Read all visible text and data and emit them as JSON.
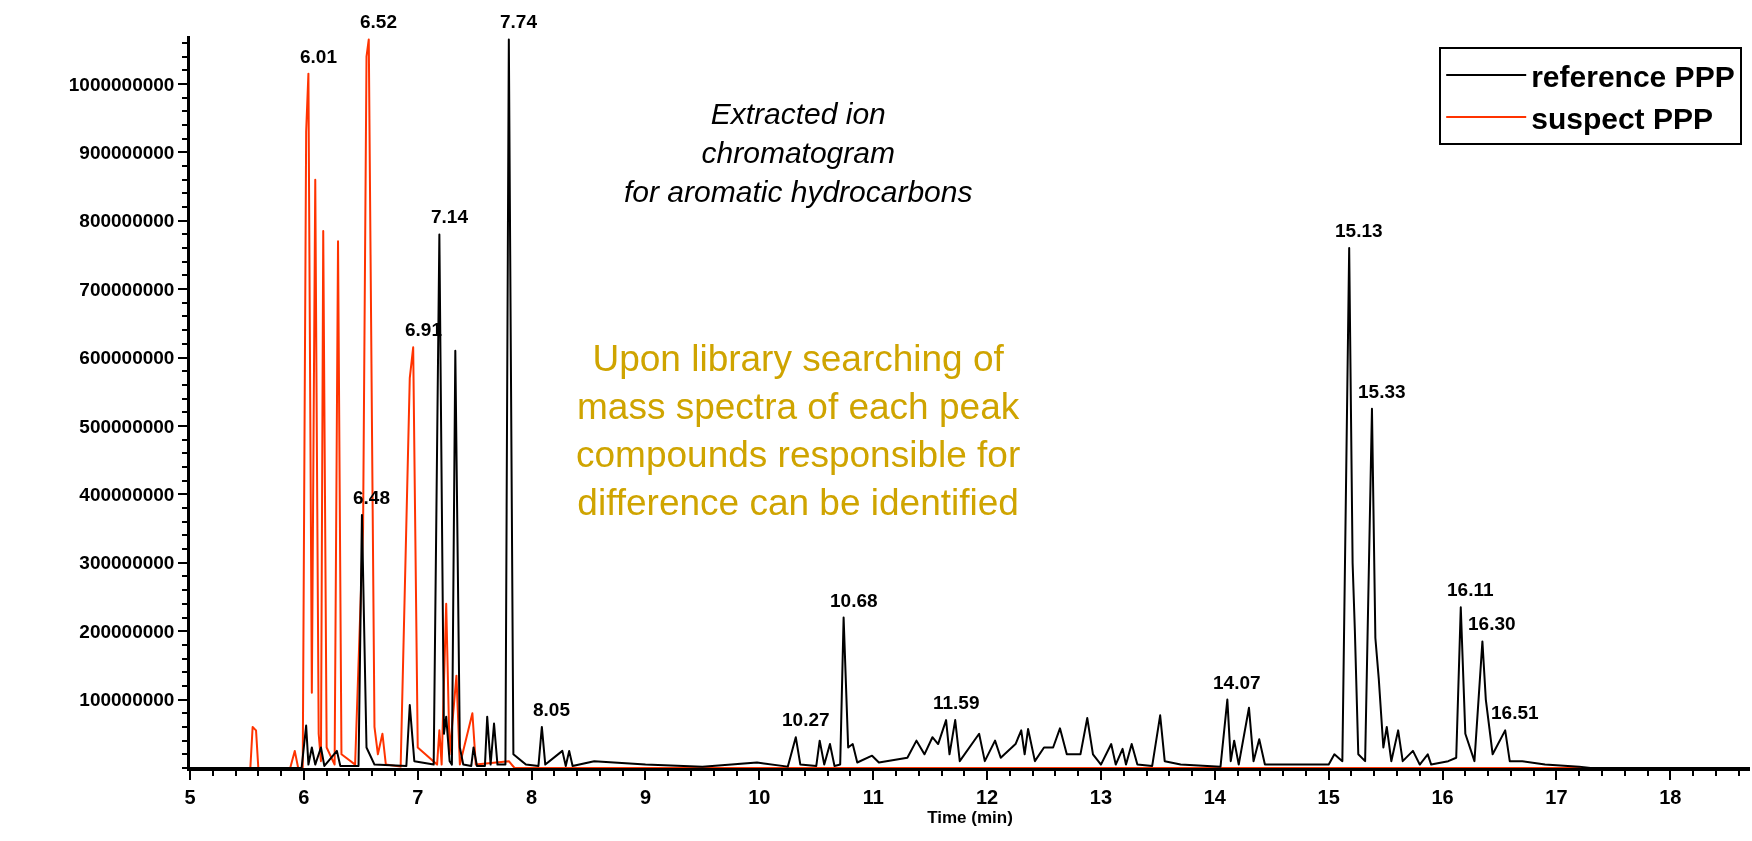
{
  "chart_data": {
    "type": "line",
    "xlabel": "Time (min)",
    "xlim": [
      5,
      18.7
    ],
    "xticks": [
      5,
      6,
      7,
      8,
      9,
      10,
      11,
      12,
      13,
      14,
      15,
      16,
      17,
      18
    ],
    "ylim": [
      0,
      1070000000
    ],
    "yticks": [
      100000000,
      200000000,
      300000000,
      400000000,
      500000000,
      600000000,
      700000000,
      800000000,
      900000000,
      1000000000
    ],
    "legend": "top right",
    "marker": "none",
    "line_style": "solid",
    "series": [
      {
        "name": "reference PPP",
        "color": "#000000",
        "x": [
          5.0,
          5.98,
          6.02,
          6.04,
          6.07,
          6.1,
          6.15,
          6.18,
          6.29,
          6.32,
          6.48,
          6.51,
          6.55,
          6.62,
          6.9,
          6.93,
          6.97,
          7.14,
          7.19,
          7.23,
          7.25,
          7.28,
          7.3,
          7.33,
          7.37,
          7.4,
          7.47,
          7.49,
          7.52,
          7.59,
          7.61,
          7.64,
          7.67,
          7.7,
          7.77,
          7.8,
          7.84,
          7.95,
          8.06,
          8.09,
          8.12,
          8.27,
          8.3,
          8.33,
          8.36,
          8.55,
          9.0,
          9.5,
          9.98,
          10.25,
          10.32,
          10.36,
          10.5,
          10.53,
          10.57,
          10.62,
          10.66,
          10.71,
          10.74,
          10.78,
          10.82,
          10.86,
          10.99,
          11.05,
          11.3,
          11.38,
          11.45,
          11.52,
          11.57,
          11.64,
          11.67,
          11.72,
          11.76,
          11.93,
          11.98,
          12.07,
          12.12,
          12.25,
          12.3,
          12.33,
          12.36,
          12.42,
          12.5,
          12.58,
          12.64,
          12.7,
          12.82,
          12.88,
          12.93,
          13.0,
          13.09,
          13.13,
          13.19,
          13.22,
          13.27,
          13.32,
          13.45,
          13.52,
          13.56,
          13.7,
          14.05,
          14.11,
          14.14,
          14.17,
          14.21,
          14.3,
          14.34,
          14.39,
          14.44,
          14.6,
          15.0,
          15.05,
          15.12,
          15.18,
          15.21,
          15.23,
          15.26,
          15.32,
          15.38,
          15.41,
          15.44,
          15.48,
          15.51,
          15.55,
          15.61,
          15.65,
          15.74,
          15.8,
          15.87,
          15.9,
          16.05,
          16.12,
          16.16,
          16.2,
          16.28,
          16.35,
          16.38,
          16.44,
          16.55,
          16.59,
          16.7,
          16.9,
          17.2,
          17.3,
          18.7
        ],
        "values": [
          0,
          0,
          62000000,
          5000000,
          30000000,
          5000000,
          30000000,
          3000000,
          25000000,
          3000000,
          3000000,
          370000000,
          30000000,
          5000000,
          3000000,
          92000000,
          10000000,
          5000000,
          780000000,
          50000000,
          75000000,
          10000000,
          5000000,
          610000000,
          30000000,
          5000000,
          3000000,
          30000000,
          3000000,
          3000000,
          75000000,
          5000000,
          65000000,
          5000000,
          5000000,
          1065000000,
          20000000,
          5000000,
          3000000,
          60000000,
          5000000,
          25000000,
          3000000,
          25000000,
          3000000,
          10000000,
          5000000,
          2000000,
          8000000,
          2000000,
          45000000,
          5000000,
          3000000,
          40000000,
          5000000,
          35000000,
          3000000,
          5000000,
          220000000,
          30000000,
          35000000,
          8000000,
          18000000,
          8000000,
          15000000,
          40000000,
          20000000,
          45000000,
          35000000,
          70000000,
          20000000,
          70000000,
          10000000,
          50000000,
          10000000,
          40000000,
          15000000,
          35000000,
          55000000,
          20000000,
          57000000,
          10000000,
          30000000,
          30000000,
          58000000,
          20000000,
          20000000,
          73000000,
          20000000,
          5000000,
          35000000,
          5000000,
          28000000,
          5000000,
          35000000,
          5000000,
          3000000,
          77000000,
          10000000,
          5000000,
          2000000,
          100000000,
          10000000,
          40000000,
          5000000,
          88000000,
          10000000,
          42000000,
          5000000,
          5000000,
          5000000,
          20000000,
          10000000,
          760000000,
          300000000,
          200000000,
          20000000,
          10000000,
          525000000,
          190000000,
          130000000,
          30000000,
          60000000,
          10000000,
          55000000,
          10000000,
          25000000,
          5000000,
          20000000,
          5000000,
          10000000,
          15000000,
          235000000,
          50000000,
          10000000,
          185000000,
          100000000,
          20000000,
          55000000,
          10000000,
          10000000,
          5000000,
          2000000,
          0,
          0
        ]
      },
      {
        "name": "suspect PPP",
        "color": "#ff3300",
        "x": [
          5.0,
          5.53,
          5.55,
          5.58,
          5.6,
          5.88,
          5.92,
          5.95,
          5.99,
          6.02,
          6.04,
          6.07,
          6.1,
          6.13,
          6.15,
          6.17,
          6.2,
          6.27,
          6.3,
          6.33,
          6.45,
          6.52,
          6.55,
          6.57,
          6.62,
          6.65,
          6.69,
          6.72,
          6.85,
          6.93,
          6.96,
          7.0,
          7.17,
          7.19,
          7.21,
          7.25,
          7.28,
          7.34,
          7.37,
          7.48,
          7.51,
          7.8,
          7.85,
          18.7
        ],
        "values": [
          0,
          0,
          60000000,
          55000000,
          0,
          0,
          25000000,
          0,
          0,
          930000000,
          1015000000,
          110000000,
          860000000,
          50000000,
          10000000,
          785000000,
          30000000,
          5000000,
          770000000,
          20000000,
          5000000,
          350000000,
          1040000000,
          1065000000,
          60000000,
          20000000,
          50000000,
          5000000,
          2000000,
          570000000,
          615000000,
          30000000,
          5000000,
          55000000,
          5000000,
          240000000,
          20000000,
          135000000,
          5000000,
          80000000,
          5000000,
          10000000,
          0,
          0
        ]
      }
    ],
    "annotations": [
      "Extracted ion\nchromatogram\nfor aromatic hydrocarbons",
      "Upon library searching of\nmass spectra of each peak\ncompounds responsible for\ndifference can be identified",
      {
        "text": "6.01",
        "x": 6.04,
        "y": 1015000000
      },
      {
        "text": "6.52",
        "x": 6.57,
        "y": 1065000000
      },
      {
        "text": "6.48",
        "x": 6.51,
        "y": 370000000
      },
      {
        "text": "6.91",
        "x": 6.96,
        "y": 615000000
      },
      {
        "text": "7.14",
        "x": 7.19,
        "y": 780000000
      },
      {
        "text": "7.74",
        "x": 7.8,
        "y": 1065000000
      },
      {
        "text": "8.05",
        "x": 8.09,
        "y": 60000000
      },
      {
        "text": "10.27",
        "x": 10.32,
        "y": 45000000
      },
      {
        "text": "10.68",
        "x": 10.74,
        "y": 220000000
      },
      {
        "text": "11.59",
        "x": 11.64,
        "y": 70000000
      },
      {
        "text": "14.07",
        "x": 14.11,
        "y": 100000000
      },
      {
        "text": "15.13",
        "x": 15.18,
        "y": 760000000
      },
      {
        "text": "15.33",
        "x": 15.38,
        "y": 525000000
      },
      {
        "text": "16.11",
        "x": 16.16,
        "y": 235000000
      },
      {
        "text": "16.30",
        "x": 16.35,
        "y": 185000000
      },
      {
        "text": "16.51",
        "x": 16.55,
        "y": 55000000
      }
    ]
  }
}
